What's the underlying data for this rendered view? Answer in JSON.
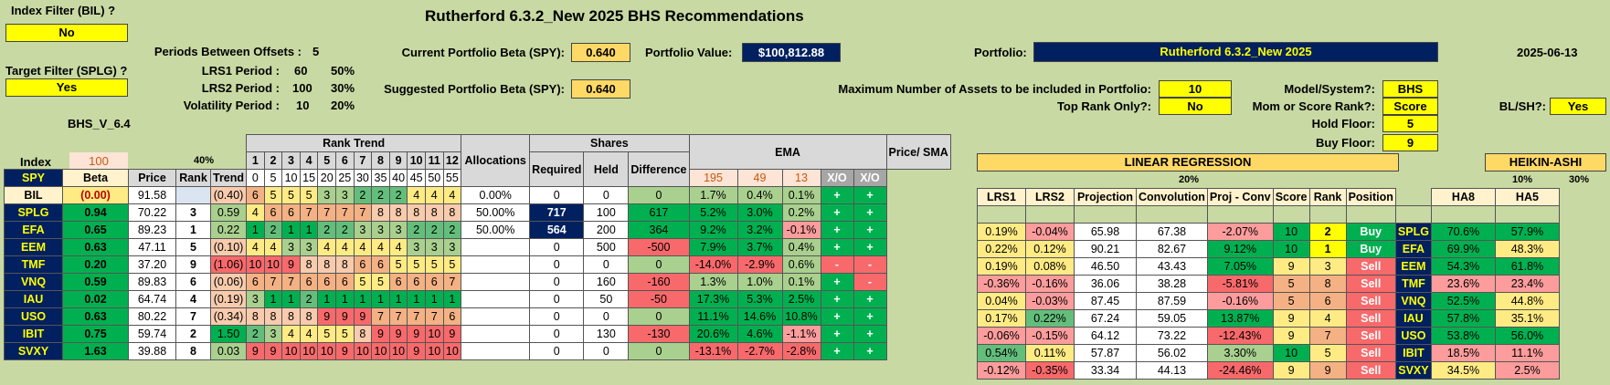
{
  "title": "Rutherford 6.3.2_New 2025 BHS Recommendations",
  "index_filter": {
    "label": "Index Filter (BIL) ?",
    "value": "No"
  },
  "target_filter": {
    "label": "Target Filter (SPLG) ?",
    "value": "Yes"
  },
  "params": {
    "periods_label": "Periods Between Offsets :",
    "periods_val": "5",
    "lrs1_label": "LRS1 Period :",
    "lrs1_val": "60",
    "lrs1_pct": "50%",
    "lrs2_label": "LRS2 Period :",
    "lrs2_val": "100",
    "lrs2_pct": "30%",
    "vol_label": "Volatility Period :",
    "vol_val": "10",
    "vol_pct": "20%"
  },
  "version": "BHS_V_6.4",
  "beta": {
    "current_label": "Current Portfolio Beta (SPY):",
    "current": "0.640",
    "suggested_label": "Suggested Portfolio Beta (SPY):",
    "suggested": "0.640"
  },
  "portfolio_value": {
    "label": "Portfolio Value:",
    "value": "$100,812.88"
  },
  "portfolio": {
    "label": "Portfolio:",
    "value": "Rutherford 6.3.2_New 2025"
  },
  "date": "2025-06-13",
  "max_assets": {
    "label": "Maximum Number of Assets to be included in Portfolio:",
    "value": "10"
  },
  "top_rank": {
    "label": "Top Rank Only?:",
    "value": "No"
  },
  "model": {
    "label": "Model/System?:",
    "value": "BHS"
  },
  "mom_score": {
    "label": "Mom or Score Rank?:",
    "value": "Score"
  },
  "blsh": {
    "label": "BL/SH?:",
    "value": "Yes"
  },
  "hold_floor": {
    "label": "Hold Floor:",
    "value": "5"
  },
  "buy_floor": {
    "label": "Buy Floor:",
    "value": "9"
  },
  "headers": {
    "index": "Index",
    "index_val": "100",
    "pct40": "40%",
    "spy": "SPY",
    "beta": "Beta",
    "price": "Price",
    "rank": "Rank",
    "trend": "Trend",
    "rank_trend": "Rank Trend",
    "allocations": "Allocations",
    "shares": "Shares",
    "required": "Required",
    "held": "Held",
    "difference": "Difference",
    "ema": "EMA",
    "price_sma": "Price/ SMA",
    "xo": "X/O",
    "ema_periods": [
      "195",
      "49",
      "13"
    ],
    "rt_nums": [
      "1",
      "2",
      "3",
      "4",
      "5",
      "6",
      "7",
      "8",
      "9",
      "10",
      "11",
      "12"
    ],
    "rt_offsets": [
      "0",
      "5",
      "10",
      "15",
      "20",
      "25",
      "30",
      "35",
      "40",
      "45",
      "50",
      "55"
    ],
    "linreg": "LINEAR REGRESSION",
    "pct20": "20%",
    "lrs1": "LRS1",
    "lrs2": "LRS2",
    "projection": "Projection",
    "convolution": "Convolution",
    "proj_conv": "Proj - Conv",
    "score": "Score",
    "rank2": "Rank",
    "position": "Position",
    "heikin": "HEIKIN-ASHI",
    "pct10": "10%",
    "pct30": "30%",
    "ha8": "HA8",
    "ha5": "HA5"
  },
  "rows": [
    {
      "tk": "BIL",
      "beta": "(0.00)",
      "price": "91.58",
      "rank": "",
      "trend": "(0.40)",
      "rt": [
        "6",
        "5",
        "5",
        "5",
        "3",
        "3",
        "2",
        "2",
        "2",
        "4",
        "4",
        "4"
      ],
      "alloc": "0.00%",
      "req": "0",
      "held": "0",
      "diff": "0",
      "e1": "1.7%",
      "e2": "0.4%",
      "e3": "0.1%",
      "x1": "+",
      "x2": "+",
      "lrs1": "",
      "lrs2": "",
      "proj": "",
      "conv": "",
      "pc": "",
      "score": "",
      "rank2": "",
      "pos": "",
      "ha8": "",
      "ha5": ""
    },
    {
      "tk": "SPLG",
      "beta": "0.94",
      "price": "70.22",
      "rank": "3",
      "trend": "0.59",
      "rt": [
        "4",
        "6",
        "6",
        "7",
        "7",
        "7",
        "7",
        "8",
        "8",
        "8",
        "8",
        "8"
      ],
      "alloc": "50.00%",
      "req": "717",
      "held": "100",
      "diff": "617",
      "e1": "5.2%",
      "e2": "3.0%",
      "e3": "0.2%",
      "x1": "+",
      "x2": "+",
      "lrs1": "0.19%",
      "lrs2": "-0.04%",
      "proj": "65.98",
      "conv": "67.38",
      "pc": "-2.07%",
      "score": "10",
      "rank2": "2",
      "pos": "Buy",
      "ha8": "70.6%",
      "ha5": "57.9%"
    },
    {
      "tk": "EFA",
      "beta": "0.65",
      "price": "89.23",
      "rank": "1",
      "trend": "0.22",
      "rt": [
        "1",
        "2",
        "1",
        "1",
        "2",
        "2",
        "3",
        "3",
        "3",
        "2",
        "2",
        "2"
      ],
      "alloc": "50.00%",
      "req": "564",
      "held": "200",
      "diff": "364",
      "e1": "9.2%",
      "e2": "3.2%",
      "e3": "-0.1%",
      "x1": "+",
      "x2": "+",
      "lrs1": "0.22%",
      "lrs2": "0.12%",
      "proj": "90.21",
      "conv": "82.67",
      "pc": "9.12%",
      "score": "10",
      "rank2": "1",
      "pos": "Buy",
      "ha8": "69.9%",
      "ha5": "48.3%"
    },
    {
      "tk": "EEM",
      "beta": "0.63",
      "price": "47.11",
      "rank": "5",
      "trend": "(0.10)",
      "rt": [
        "4",
        "4",
        "3",
        "3",
        "4",
        "4",
        "4",
        "4",
        "4",
        "3",
        "3",
        "3"
      ],
      "alloc": "",
      "req": "0",
      "held": "500",
      "diff": "-500",
      "e1": "7.9%",
      "e2": "3.7%",
      "e3": "0.4%",
      "x1": "+",
      "x2": "+",
      "lrs1": "0.19%",
      "lrs2": "0.08%",
      "proj": "46.50",
      "conv": "43.43",
      "pc": "7.05%",
      "score": "9",
      "rank2": "3",
      "pos": "Sell",
      "ha8": "54.3%",
      "ha5": "61.8%"
    },
    {
      "tk": "TMF",
      "beta": "0.20",
      "price": "37.20",
      "rank": "9",
      "trend": "(1.06)",
      "rt": [
        "10",
        "10",
        "9",
        "8",
        "8",
        "8",
        "6",
        "6",
        "5",
        "5",
        "5",
        "5"
      ],
      "alloc": "",
      "req": "0",
      "held": "0",
      "diff": "0",
      "e1": "-14.0%",
      "e2": "-2.9%",
      "e3": "0.6%",
      "x1": "-",
      "x2": "-",
      "lrs1": "-0.36%",
      "lrs2": "-0.16%",
      "proj": "36.06",
      "conv": "38.28",
      "pc": "-5.81%",
      "score": "5",
      "rank2": "8",
      "pos": "Sell",
      "ha8": "23.6%",
      "ha5": "23.4%"
    },
    {
      "tk": "VNQ",
      "beta": "0.59",
      "price": "89.83",
      "rank": "6",
      "trend": "(0.06)",
      "rt": [
        "6",
        "7",
        "7",
        "6",
        "6",
        "6",
        "5",
        "5",
        "6",
        "6",
        "6",
        "7"
      ],
      "alloc": "",
      "req": "0",
      "held": "160",
      "diff": "-160",
      "e1": "1.3%",
      "e2": "1.0%",
      "e3": "0.1%",
      "x1": "+",
      "x2": "-",
      "lrs1": "0.04%",
      "lrs2": "-0.03%",
      "proj": "87.45",
      "conv": "87.59",
      "pc": "-0.16%",
      "score": "5",
      "rank2": "6",
      "pos": "Sell",
      "ha8": "52.5%",
      "ha5": "44.8%"
    },
    {
      "tk": "IAU",
      "beta": "0.02",
      "price": "64.74",
      "rank": "4",
      "trend": "(0.19)",
      "rt": [
        "3",
        "1",
        "1",
        "2",
        "1",
        "1",
        "1",
        "1",
        "1",
        "1",
        "1",
        "1"
      ],
      "alloc": "",
      "req": "0",
      "held": "50",
      "diff": "-50",
      "e1": "17.3%",
      "e2": "5.3%",
      "e3": "2.5%",
      "x1": "+",
      "x2": "+",
      "lrs1": "0.17%",
      "lrs2": "0.22%",
      "proj": "67.24",
      "conv": "59.05",
      "pc": "13.87%",
      "score": "9",
      "rank2": "4",
      "pos": "Sell",
      "ha8": "57.8%",
      "ha5": "35.1%"
    },
    {
      "tk": "USO",
      "beta": "0.63",
      "price": "80.22",
      "rank": "7",
      "trend": "(0.34)",
      "rt": [
        "8",
        "8",
        "8",
        "8",
        "9",
        "9",
        "9",
        "7",
        "7",
        "7",
        "7",
        "6"
      ],
      "alloc": "",
      "req": "0",
      "held": "0",
      "diff": "0",
      "e1": "11.1%",
      "e2": "14.6%",
      "e3": "10.8%",
      "x1": "+",
      "x2": "+",
      "lrs1": "-0.06%",
      "lrs2": "-0.15%",
      "proj": "64.12",
      "conv": "73.22",
      "pc": "-12.43%",
      "score": "9",
      "rank2": "7",
      "pos": "Sell",
      "ha8": "53.8%",
      "ha5": "56.0%"
    },
    {
      "tk": "IBIT",
      "beta": "0.75",
      "price": "59.74",
      "rank": "2",
      "trend": "1.50",
      "rt": [
        "2",
        "3",
        "4",
        "4",
        "5",
        "5",
        "8",
        "9",
        "9",
        "9",
        "10",
        "9"
      ],
      "alloc": "",
      "req": "0",
      "held": "130",
      "diff": "-130",
      "e1": "20.6%",
      "e2": "4.6%",
      "e3": "-1.1%",
      "x1": "+",
      "x2": "+",
      "lrs1": "0.54%",
      "lrs2": "0.11%",
      "proj": "57.87",
      "conv": "56.02",
      "pc": "3.30%",
      "score": "10",
      "rank2": "5",
      "pos": "Sell",
      "ha8": "18.5%",
      "ha5": "11.1%"
    },
    {
      "tk": "SVXY",
      "beta": "1.63",
      "price": "39.88",
      "rank": "8",
      "trend": "0.03",
      "rt": [
        "9",
        "9",
        "10",
        "10",
        "10",
        "9",
        "10",
        "10",
        "10",
        "9",
        "10",
        "10"
      ],
      "alloc": "",
      "req": "0",
      "held": "0",
      "diff": "0",
      "e1": "-13.1%",
      "e2": "-2.7%",
      "e3": "-2.8%",
      "x1": "+",
      "x2": "+",
      "lrs1": "-0.12%",
      "lrs2": "-0.35%",
      "proj": "33.34",
      "conv": "44.13",
      "pc": "-24.46%",
      "score": "9",
      "rank2": "9",
      "pos": "Sell",
      "ha8": "34.5%",
      "ha5": "2.5%"
    }
  ]
}
